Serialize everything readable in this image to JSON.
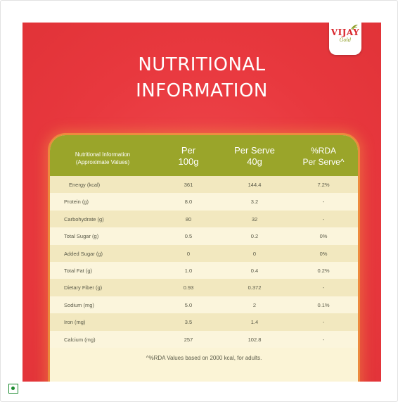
{
  "brand": {
    "logo_text": "VIJAY",
    "logo_sub": "Gold"
  },
  "title": {
    "line1": "NUTRITIONAL",
    "line2": "INFORMATION"
  },
  "table": {
    "header": {
      "col0_line1": "Nutritional Information",
      "col0_line2": "(Approximate Values)",
      "col1_line1": "Per",
      "col1_line2": "100g",
      "col2_line1": "Per Serve",
      "col2_line2": "40g",
      "col3_line1": "%RDA",
      "col3_line2": "Per Serve^"
    },
    "rows": [
      {
        "name": "Energy (kcal)",
        "per100": "361",
        "perServe": "144.4",
        "rda": "7.2%"
      },
      {
        "name": "Protein (g)",
        "per100": "8.0",
        "perServe": "3.2",
        "rda": "-"
      },
      {
        "name": "Carbohydrate (g)",
        "per100": "80",
        "perServe": "32",
        "rda": "-"
      },
      {
        "name": "Total Sugar (g)",
        "per100": "0.5",
        "perServe": "0.2",
        "rda": "0%"
      },
      {
        "name": "Added Sugar (g)",
        "per100": "0",
        "perServe": "0",
        "rda": "0%"
      },
      {
        "name": "Total Fat (g)",
        "per100": "1.0",
        "perServe": "0.4",
        "rda": "0.2%"
      },
      {
        "name": "Dietary Fiber (g)",
        "per100": "0.93",
        "perServe": "0.372",
        "rda": "-"
      },
      {
        "name": "Sodium (mg)",
        "per100": "5.0",
        "perServe": "2",
        "rda": "0.1%"
      },
      {
        "name": "Iron (mg)",
        "per100": "3.5",
        "perServe": "1.4",
        "rda": "-"
      },
      {
        "name": "Calcium (mg)",
        "per100": "257",
        "perServe": "102.8",
        "rda": "-"
      }
    ],
    "footnote": "^%RDA Values based on 2000 kcal, for adults."
  },
  "colors": {
    "poster_bg": "#e8383e",
    "header_bg": "#9aa52a",
    "card_bg": "#fbf4d6",
    "veg_mark": "#1a8a2e"
  },
  "icons": {
    "veg": "veg-indicator-icon",
    "leaf": "leaf-icon"
  }
}
